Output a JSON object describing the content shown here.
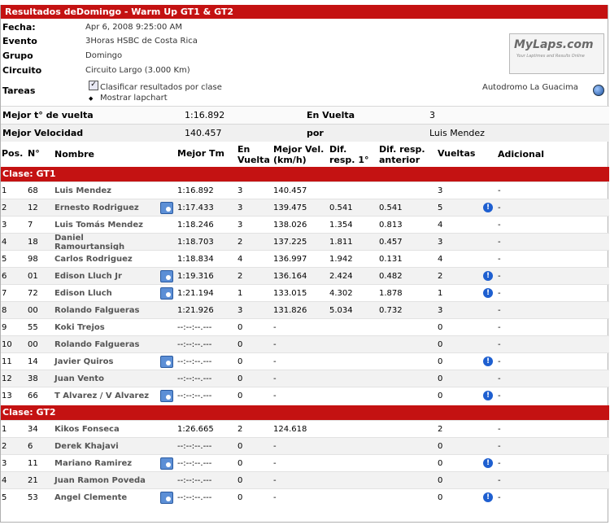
{
  "title": "Resultados deDomingo - Warm Up GT1 & GT2",
  "info": {
    "fecha_label": "Fecha:",
    "fecha": "Apr 6, 2008 9:25:00 AM",
    "evento_label": "Evento",
    "evento": "3Horas HSBC de Costa Rica",
    "grupo_label": "Grupo",
    "grupo": "Domingo",
    "circuito_label": "Circuito",
    "circuito": "Circuito Largo (3.000 Km)",
    "tareas_label": "Tareas",
    "clasificar": "Clasificar resultados por clase",
    "mostrar": "Mostrar lapchart",
    "track": "Autodromo La Guacima",
    "logo": "MyLaps.com",
    "logo_tag": "Your Laptimes and Results Online"
  },
  "summary": {
    "mejor_t_label": "Mejor t° de vuelta",
    "mejor_t": "1:16.892",
    "en_vuelta_label": "En Vuelta",
    "en_vuelta": "3",
    "mejor_vel_label": "Mejor Velocidad",
    "mejor_vel": "140.457",
    "por_label": "por",
    "por": "Luis Mendez"
  },
  "headers": {
    "pos": "Pos.",
    "num": "N°",
    "nombre": "Nombre",
    "mejor_tm": "Mejor Tm",
    "en": "En",
    "vuelta": "Vuelta",
    "mejor": "Mejor Vel.",
    "kmh": "(km/h)",
    "dif": "Dif.",
    "resp1": "resp. 1°",
    "difresp": "Dif. resp.",
    "anterior": "anterior",
    "vueltas": "Vueltas",
    "adicional": "Adicional"
  },
  "classes": [
    {
      "label": "Clase: GT1",
      "rows": [
        {
          "pos": "1",
          "num": "68",
          "name": "Luis Mendez",
          "cam": false,
          "tm": "1:16.892",
          "en": "3",
          "vel": "140.457",
          "dif1": "",
          "difa": "",
          "laps": "3",
          "alert": false,
          "add": "-"
        },
        {
          "pos": "2",
          "num": "12",
          "name": "Ernesto Rodriguez",
          "cam": true,
          "tm": "1:17.433",
          "en": "3",
          "vel": "139.475",
          "dif1": "0.541",
          "difa": "0.541",
          "laps": "5",
          "alert": true,
          "add": "-"
        },
        {
          "pos": "3",
          "num": "7",
          "name": "Luis Tomás Mendez",
          "cam": false,
          "tm": "1:18.246",
          "en": "3",
          "vel": "138.026",
          "dif1": "1.354",
          "difa": "0.813",
          "laps": "4",
          "alert": false,
          "add": "-"
        },
        {
          "pos": "4",
          "num": "18",
          "name": "Daniel",
          "name2": "Ramourtansigh",
          "cam": false,
          "tm": "1:18.703",
          "en": "2",
          "vel": "137.225",
          "dif1": "1.811",
          "difa": "0.457",
          "laps": "3",
          "alert": false,
          "add": "-"
        },
        {
          "pos": "5",
          "num": "98",
          "name": "Carlos Rodriguez",
          "cam": false,
          "tm": "1:18.834",
          "en": "4",
          "vel": "136.997",
          "dif1": "1.942",
          "difa": "0.131",
          "laps": "4",
          "alert": false,
          "add": "-"
        },
        {
          "pos": "6",
          "num": "01",
          "name": "Edison Lluch Jr",
          "cam": true,
          "tm": "1:19.316",
          "en": "2",
          "vel": "136.164",
          "dif1": "2.424",
          "difa": "0.482",
          "laps": "2",
          "alert": true,
          "add": "-"
        },
        {
          "pos": "7",
          "num": "72",
          "name": "Edison Lluch",
          "cam": true,
          "tm": "1:21.194",
          "en": "1",
          "vel": "133.015",
          "dif1": "4.302",
          "difa": "1.878",
          "laps": "1",
          "alert": true,
          "add": "-"
        },
        {
          "pos": "8",
          "num": "00",
          "name": "Rolando Falgueras",
          "cam": false,
          "tm": "1:21.926",
          "en": "3",
          "vel": "131.826",
          "dif1": "5.034",
          "difa": "0.732",
          "laps": "3",
          "alert": false,
          "add": "-"
        },
        {
          "pos": "9",
          "num": "55",
          "name": "Koki Trejos",
          "cam": false,
          "tm": "--:--:--.---",
          "en": "0",
          "vel": "-",
          "dif1": "",
          "difa": "",
          "laps": "0",
          "alert": false,
          "add": "-"
        },
        {
          "pos": "10",
          "num": "00",
          "name": "Rolando Falgueras",
          "cam": false,
          "tm": "--:--:--.---",
          "en": "0",
          "vel": "-",
          "dif1": "",
          "difa": "",
          "laps": "0",
          "alert": false,
          "add": "-"
        },
        {
          "pos": "11",
          "num": "14",
          "name": "Javier Quiros",
          "cam": true,
          "tm": "--:--:--.---",
          "en": "0",
          "vel": "-",
          "dif1": "",
          "difa": "",
          "laps": "0",
          "alert": true,
          "add": "-"
        },
        {
          "pos": "12",
          "num": "38",
          "name": "Juan Vento",
          "cam": false,
          "tm": "--:--:--.---",
          "en": "0",
          "vel": "-",
          "dif1": "",
          "difa": "",
          "laps": "0",
          "alert": false,
          "add": "-"
        },
        {
          "pos": "13",
          "num": "66",
          "name": "T Alvarez / V Alvarez",
          "cam": true,
          "tm": "--:--:--.---",
          "en": "0",
          "vel": "-",
          "dif1": "",
          "difa": "",
          "laps": "0",
          "alert": true,
          "add": "-"
        }
      ]
    },
    {
      "label": "Clase: GT2",
      "rows": [
        {
          "pos": "1",
          "num": "34",
          "name": "Kikos Fonseca",
          "cam": false,
          "tm": "1:26.665",
          "en": "2",
          "vel": "124.618",
          "dif1": "",
          "difa": "",
          "laps": "2",
          "alert": false,
          "add": "-"
        },
        {
          "pos": "2",
          "num": "6",
          "name": "Derek Khajavi",
          "cam": false,
          "tm": "--:--:--.---",
          "en": "0",
          "vel": "-",
          "dif1": "",
          "difa": "",
          "laps": "0",
          "alert": false,
          "add": "-"
        },
        {
          "pos": "3",
          "num": "11",
          "name": "Mariano Ramirez",
          "cam": true,
          "tm": "--:--:--.---",
          "en": "0",
          "vel": "-",
          "dif1": "",
          "difa": "",
          "laps": "0",
          "alert": true,
          "add": "-"
        },
        {
          "pos": "4",
          "num": "21",
          "name": "Juan Ramon Poveda",
          "cam": false,
          "tm": "--:--:--.---",
          "en": "0",
          "vel": "-",
          "dif1": "",
          "difa": "",
          "laps": "0",
          "alert": false,
          "add": "-"
        },
        {
          "pos": "5",
          "num": "53",
          "name": "Angel Clemente",
          "cam": true,
          "tm": "--:--:--.---",
          "en": "0",
          "vel": "-",
          "dif1": "",
          "difa": "",
          "laps": "0",
          "alert": true,
          "add": "-"
        }
      ]
    }
  ]
}
